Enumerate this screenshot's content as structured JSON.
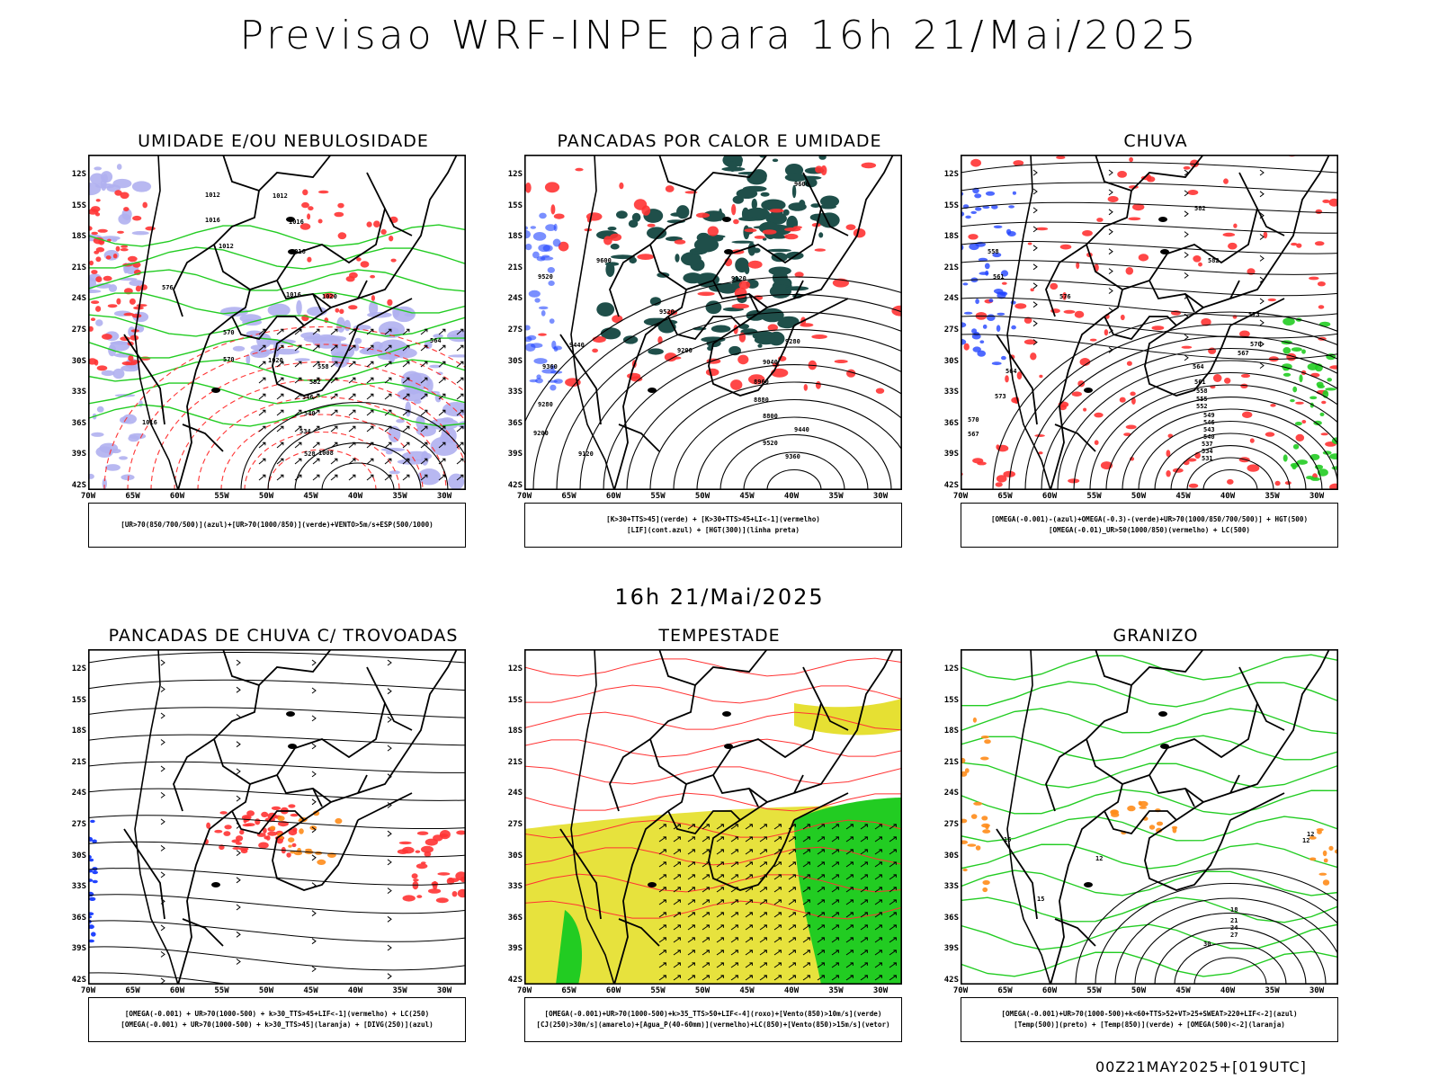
{
  "title": "Previsao WRF-INPE  para 16h 21/Mai/2025",
  "subtitle": "16h 21/Mai/2025",
  "footer": "00Z21MAY2025+[019UTC]",
  "axes": {
    "lat_labels": [
      "12S",
      "15S",
      "18S",
      "21S",
      "24S",
      "27S",
      "30S",
      "33S",
      "36S",
      "39S",
      "42S"
    ],
    "lon_labels": [
      "70W",
      "65W",
      "60W",
      "55W",
      "50W",
      "45W",
      "40W",
      "35W",
      "30W"
    ]
  },
  "panels": [
    {
      "title": "UMIDADE E/OU NEBULOSIDADE",
      "legend": [
        "[UR>70(850/700/500)](azul)+[UR>70(1000/850)](verde)+VENTO>5m/s+ESP(500/1000)"
      ]
    },
    {
      "title": "PANCADAS POR CALOR E UMIDADE",
      "legend": [
        "[K>30+TTS>45](verde) + [K>30+TTS>45+LI<-1](vermelho)",
        "[LIF](cont.azul) + [HGT(300)](linha preta)"
      ]
    },
    {
      "title": "CHUVA",
      "legend": [
        "[OMEGA(-0.001)-(azul)+OMEGA(-0.3)-(verde)+UR>70(1000/850/700/500)] + HGT(500)",
        "[OMEGA(-0.01)_UR>50(1000/850)(vermelho) + LC(500)"
      ]
    },
    {
      "title": "PANCADAS DE CHUVA C/ TROVOADAS",
      "legend": [
        "[OMEGA(-0.001) + UR>70(1000-500) + k>30_TTS>45+LIF<-1](vermelho) + LC(250)",
        "[OMEGA(-0.001) + UR>70(1000-500) + k>30_TTS>45](laranja) + [DIVG(250)](azul)"
      ]
    },
    {
      "title": "TEMPESTADE",
      "legend": [
        "[OMEGA(-0.001)+UR>70(1000-500)+k>35_TTS>50+LIF<-4](roxo)+[Vento(850)>10m/s](verde)",
        "[CJ(250)>30m/s](amarelo)+[Agua_P(40-60mm)](vermelho)+LC(850)+[Vento(850)>15m/s](vetor)"
      ]
    },
    {
      "title": "GRANIZO",
      "legend": [
        "[OMEGA(-0.001)+UR>70(1000-500)+k<60+TTS>52+VT>25+SWEAT>220+LIF<-2](azul)",
        "[Temp(500)](preto) + [Temp(850)](verde) + [OMEGA(500)<-2](laranja)"
      ]
    }
  ],
  "contour_labels": {
    "p0": [
      "1012",
      "1012",
      "1012",
      "1016",
      "1016",
      "1016",
      "1016",
      "1020",
      "1016",
      "1020",
      "1008",
      "570",
      "570",
      "564",
      "558",
      "552",
      "546",
      "540",
      "534",
      "528",
      "576"
    ],
    "p1": [
      "9600",
      "9600",
      "9520",
      "9520",
      "9440",
      "9360",
      "9280",
      "9200",
      "9120",
      "9040",
      "8960",
      "8880",
      "8800",
      "9440",
      "9520",
      "9360",
      "9280",
      "9200",
      "9120"
    ],
    "p2": [
      "582",
      "582",
      "576",
      "573",
      "570",
      "567",
      "564",
      "561",
      "558",
      "555",
      "552",
      "549",
      "546",
      "543",
      "540",
      "537",
      "534",
      "531",
      "573",
      "570",
      "567",
      "564",
      "561",
      "558"
    ],
    "p5": [
      "15",
      "12",
      "12",
      "15",
      "18",
      "21",
      "24",
      "27",
      "30",
      "12"
    ]
  },
  "colors": {
    "red": "#ff3333",
    "green": "#22cc22",
    "blue": "#2244ff",
    "lavender": "#b0b0f0",
    "teal": "#1f4f4a",
    "yellow": "#e6e033",
    "orange": "#ff8c1a",
    "black": "#000000"
  }
}
